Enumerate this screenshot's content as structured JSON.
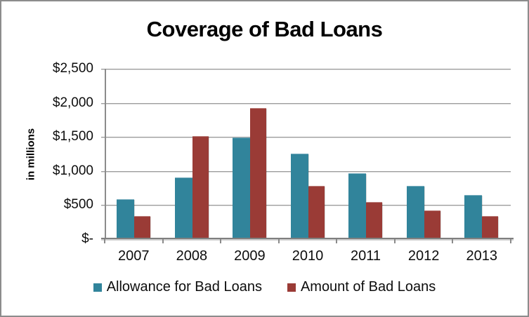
{
  "frame": {
    "background": "#ffffff",
    "border_color": "#8c8c8c"
  },
  "chart_data": {
    "type": "bar",
    "title": "Coverage of Bad Loans",
    "xlabel": "",
    "ylabel": "in millions",
    "categories": [
      "2007",
      "2008",
      "2009",
      "2010",
      "2011",
      "2012",
      "2013"
    ],
    "series": [
      {
        "name": "Allowance for Bad Loans",
        "color": "#31849B",
        "edge_color": "#7BAFC0",
        "values": [
          580,
          900,
          1480,
          1250,
          960,
          770,
          640
        ]
      },
      {
        "name": "Amount of Bad Loans",
        "color": "#9A3B36",
        "edge_color": "#BD827E",
        "values": [
          325,
          1500,
          1915,
          775,
          540,
          410,
          325
        ]
      }
    ],
    "ylim": [
      0,
      2500
    ],
    "ytick_interval": 500,
    "ytick_labels": [
      "$-",
      "$500",
      "$1,000",
      "$1,500",
      "$2,000",
      "$2,500"
    ],
    "grid": true,
    "legend_position": "bottom",
    "axis_color": "#7f7f7f",
    "gridline_color": "#9d9d9d",
    "text_color": "#0d0d0d"
  }
}
